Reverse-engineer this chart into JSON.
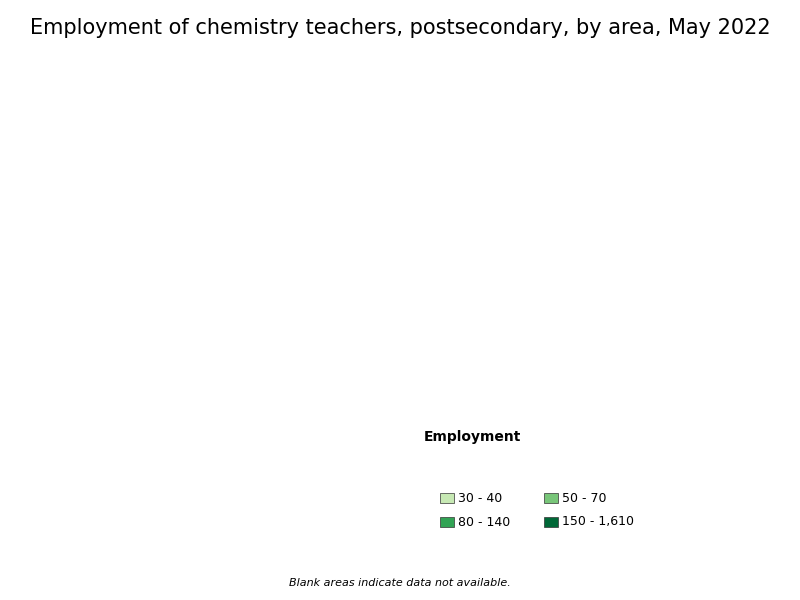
{
  "title": "Employment of chemistry teachers, postsecondary, by area, May 2022",
  "legend_title": "Employment",
  "legend_items": [
    {
      "label": "30 - 40",
      "color": "#c7e9b4"
    },
    {
      "label": "50 - 70",
      "color": "#78c679"
    },
    {
      "label": "80 - 140",
      "color": "#31a354"
    },
    {
      "label": "150 - 1,610",
      "color": "#006837"
    }
  ],
  "no_data_color": "#ffffff",
  "boundary_color": "#555555",
  "background_color": "#ffffff",
  "footnote": "Blank areas indicate data not available.",
  "title_fontsize": 15,
  "legend_fontsize": 9,
  "boundary_linewidth": 0.3,
  "state_boundary_linewidth": 0.8,
  "figsize": [
    8.0,
    6.0
  ],
  "dpi": 100
}
